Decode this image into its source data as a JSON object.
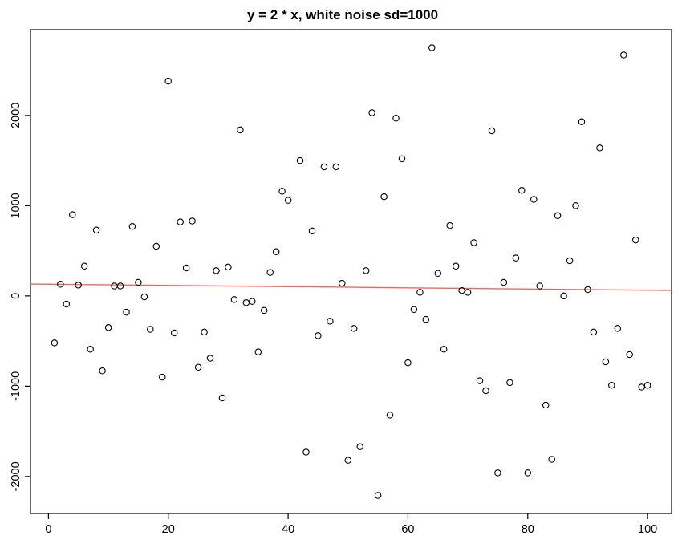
{
  "chart_data": {
    "type": "scatter",
    "title": "y = 2 * x, white noise sd=1000",
    "xlabel": "",
    "ylabel": "",
    "xlim": [
      -3,
      104
    ],
    "ylim": [
      -2410,
      2950
    ],
    "x_ticks": [
      0,
      20,
      40,
      60,
      80,
      100
    ],
    "y_ticks": [
      -2000,
      -1000,
      0,
      1000,
      2000
    ],
    "grid": false,
    "legend": "none",
    "marker": "open-circle",
    "point_color": "#000000",
    "fit_line": {
      "type": "linear",
      "intercept": 130,
      "slope": -0.67,
      "color": "#F04A42"
    },
    "points": [
      [
        1,
        -520
      ],
      [
        2,
        130
      ],
      [
        3,
        -90
      ],
      [
        4,
        900
      ],
      [
        5,
        120
      ],
      [
        6,
        330
      ],
      [
        7,
        -590
      ],
      [
        8,
        730
      ],
      [
        9,
        -830
      ],
      [
        10,
        -350
      ],
      [
        11,
        110
      ],
      [
        12,
        110
      ],
      [
        13,
        -180
      ],
      [
        14,
        770
      ],
      [
        15,
        150
      ],
      [
        16,
        -10
      ],
      [
        17,
        -370
      ],
      [
        18,
        550
      ],
      [
        19,
        -900
      ],
      [
        20,
        2380
      ],
      [
        21,
        -410
      ],
      [
        22,
        820
      ],
      [
        23,
        310
      ],
      [
        24,
        830
      ],
      [
        25,
        -790
      ],
      [
        26,
        -400
      ],
      [
        27,
        -690
      ],
      [
        28,
        280
      ],
      [
        29,
        -1130
      ],
      [
        30,
        320
      ],
      [
        31,
        -40
      ],
      [
        32,
        1840
      ],
      [
        33,
        -75
      ],
      [
        34,
        -60
      ],
      [
        35,
        -620
      ],
      [
        36,
        -160
      ],
      [
        37,
        260
      ],
      [
        38,
        490
      ],
      [
        39,
        1160
      ],
      [
        40,
        1060
      ],
      [
        42,
        1500
      ],
      [
        43,
        -1730
      ],
      [
        44,
        720
      ],
      [
        45,
        -440
      ],
      [
        46,
        1430
      ],
      [
        47,
        -280
      ],
      [
        48,
        1430
      ],
      [
        49,
        140
      ],
      [
        50,
        -1820
      ],
      [
        51,
        -360
      ],
      [
        52,
        -1670
      ],
      [
        53,
        280
      ],
      [
        54,
        2030
      ],
      [
        55,
        -2210
      ],
      [
        56,
        1100
      ],
      [
        57,
        -1320
      ],
      [
        58,
        1970
      ],
      [
        59,
        1520
      ],
      [
        60,
        -740
      ],
      [
        61,
        -150
      ],
      [
        62,
        40
      ],
      [
        63,
        -260
      ],
      [
        64,
        2750
      ],
      [
        65,
        250
      ],
      [
        66,
        -590
      ],
      [
        67,
        780
      ],
      [
        68,
        330
      ],
      [
        69,
        60
      ],
      [
        70,
        40
      ],
      [
        71,
        590
      ],
      [
        72,
        -940
      ],
      [
        73,
        -1050
      ],
      [
        74,
        1830
      ],
      [
        75,
        -1960
      ],
      [
        76,
        150
      ],
      [
        77,
        -960
      ],
      [
        78,
        420
      ],
      [
        79,
        1170
      ],
      [
        80,
        -1960
      ],
      [
        81,
        1070
      ],
      [
        82,
        110
      ],
      [
        83,
        -1210
      ],
      [
        84,
        -1810
      ],
      [
        85,
        890
      ],
      [
        86,
        0
      ],
      [
        87,
        390
      ],
      [
        88,
        1000
      ],
      [
        89,
        1930
      ],
      [
        90,
        70
      ],
      [
        91,
        -400
      ],
      [
        92,
        1640
      ],
      [
        93,
        -730
      ],
      [
        94,
        -990
      ],
      [
        95,
        -360
      ],
      [
        96,
        2670
      ],
      [
        97,
        -650
      ],
      [
        98,
        620
      ],
      [
        99,
        -1010
      ],
      [
        100,
        -990
      ]
    ]
  }
}
